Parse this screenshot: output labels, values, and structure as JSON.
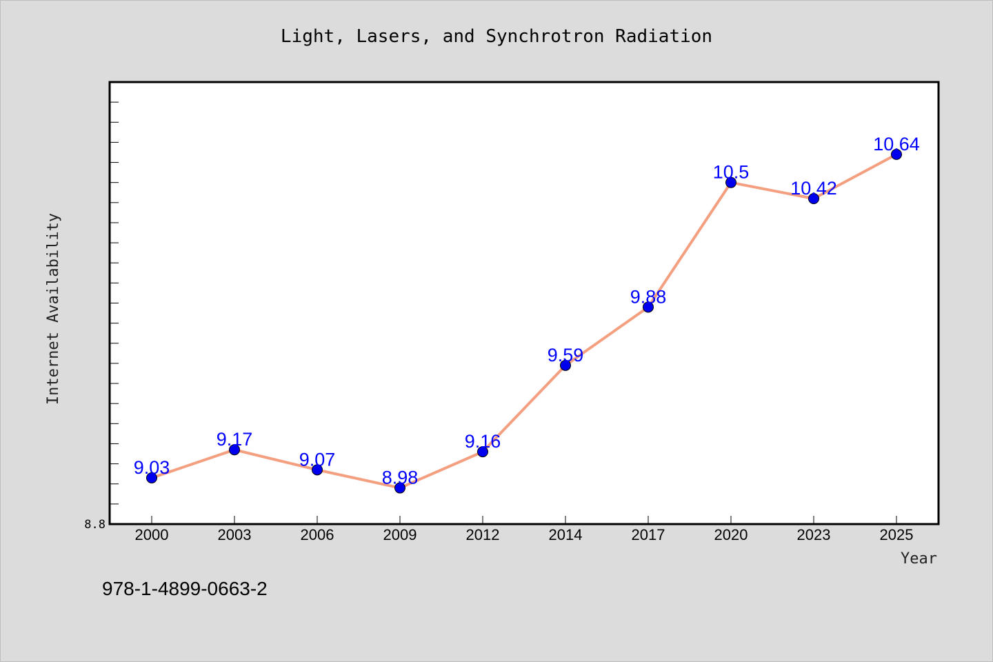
{
  "chart_data": {
    "type": "line",
    "title": "Light, Lasers, and Synchrotron Radiation",
    "xlabel": "Year",
    "ylabel": "Internet Availability",
    "categories": [
      "2000",
      "2003",
      "2006",
      "2009",
      "2012",
      "2014",
      "2017",
      "2020",
      "2023",
      "2025"
    ],
    "series": [
      {
        "values": [
          9.03,
          9.17,
          9.07,
          8.98,
          9.16,
          9.59,
          9.88,
          10.5,
          10.42,
          10.64
        ],
        "line_color": "#f4a080",
        "marker_color": "#0000ee"
      }
    ],
    "data_labels": [
      "9.03",
      "9.17",
      "9.07",
      "8.98",
      "9.16",
      "9.59",
      "9.88",
      "10.5",
      "10.42",
      "10.64"
    ],
    "ylim": [
      8.8,
      11.0
    ],
    "ytick_labels": [
      "8.8"
    ],
    "grid": false,
    "legend": "none"
  },
  "footer": {
    "isbn": "978-1-4899-0663-2"
  }
}
